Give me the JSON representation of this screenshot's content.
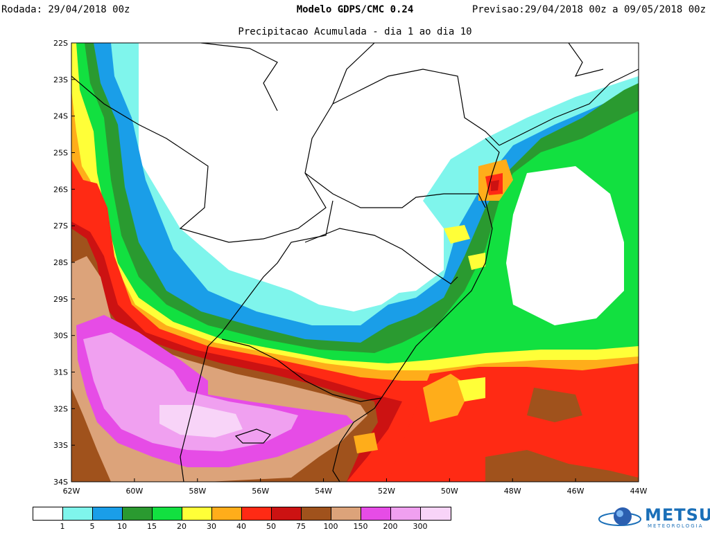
{
  "header": {
    "run": "Rodada: 29/04/2018 00z",
    "model": "Modelo GDPS/CMC 0.24",
    "forecast": "Previsao:29/04/2018 00z a 09/05/2018 00z",
    "subtitle": "Precipitacao Acumulada - dia 1 ao dia 10"
  },
  "map": {
    "lat_labels": [
      "22S",
      "23S",
      "24S",
      "25S",
      "26S",
      "27S",
      "28S",
      "29S",
      "30S",
      "31S",
      "32S",
      "33S",
      "34S"
    ],
    "lon_labels": [
      "62W",
      "60W",
      "58W",
      "56W",
      "54W",
      "52W",
      "50W",
      "48W",
      "46W",
      "44W"
    ]
  },
  "legend": {
    "colors": [
      "#ffffff",
      "#7ff5ec",
      "#1a9ee8",
      "#2a9a30",
      "#12e040",
      "#ffff38",
      "#ffad1a",
      "#ff2a14",
      "#cc1212",
      "#a0521c",
      "#dca37a",
      "#e64ce6",
      "#f0a0f0",
      "#f8d4f8"
    ],
    "labels": [
      "1",
      "5",
      "10",
      "15",
      "20",
      "30",
      "40",
      "50",
      "75",
      "100",
      "150",
      "200",
      "300"
    ]
  },
  "logo": {
    "name": "METSUL",
    "tagline": "METEOROLOGIA"
  }
}
